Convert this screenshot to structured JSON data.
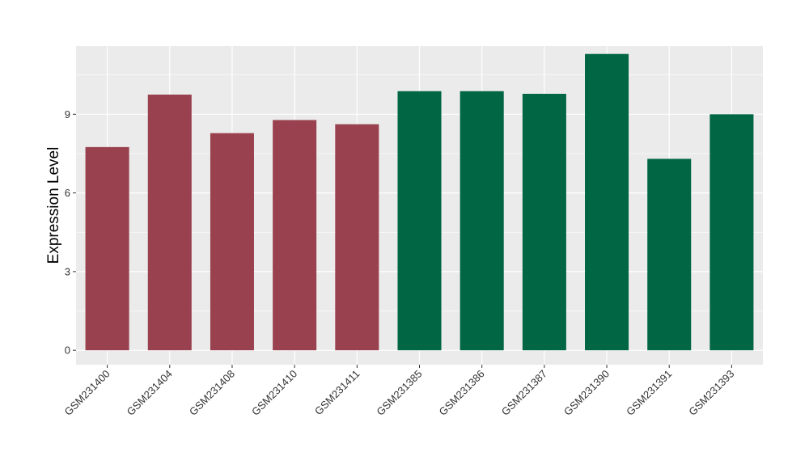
{
  "chart_data": {
    "type": "bar",
    "title": "",
    "xlabel": "",
    "ylabel": "Expression Level",
    "ylim": [
      -0.55,
      11.6
    ],
    "yticks": [
      0,
      3,
      6,
      9
    ],
    "grid": true,
    "legend": "none",
    "categories": [
      "GSM231400",
      "GSM231404",
      "GSM231408",
      "GSM231410",
      "GSM231411",
      "GSM231385",
      "GSM231386",
      "GSM231387",
      "GSM231390",
      "GSM231391",
      "GSM231393"
    ],
    "values": [
      7.75,
      9.75,
      8.28,
      8.78,
      8.62,
      9.88,
      9.88,
      9.78,
      11.3,
      7.3,
      9.0
    ],
    "bar_colors": [
      "#99414f",
      "#99414f",
      "#99414f",
      "#99414f",
      "#99414f",
      "#006644",
      "#006644",
      "#006644",
      "#006644",
      "#006644",
      "#006644"
    ],
    "colors": {
      "panel_background": "#ebebeb",
      "grid": "#ffffff",
      "group_1": "#99414f",
      "group_2": "#006644"
    }
  }
}
